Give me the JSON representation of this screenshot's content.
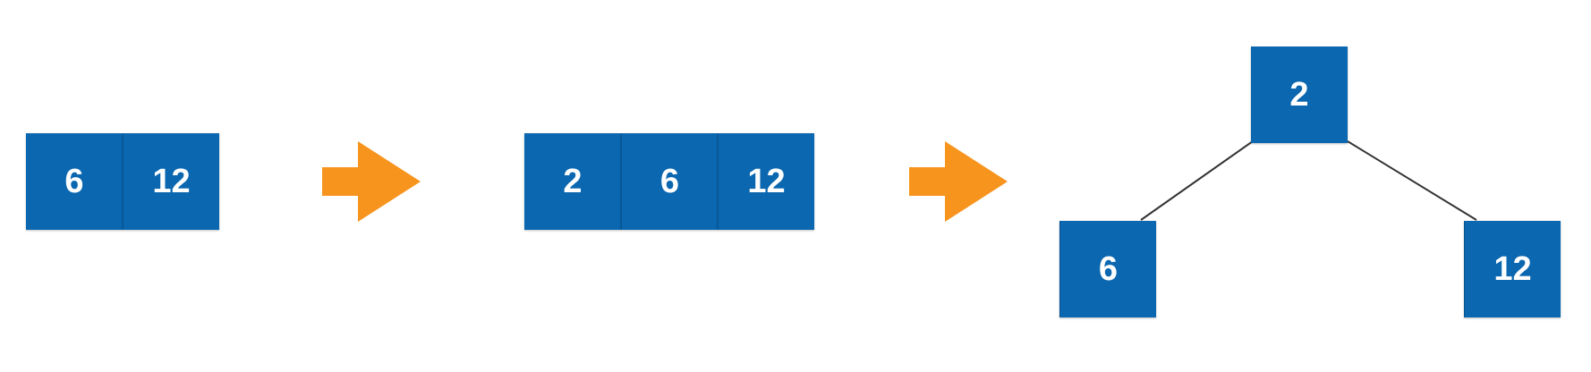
{
  "colors": {
    "node_fill": "#0a67b0",
    "arrow_fill": "#f7941d",
    "edge_stroke": "#333333",
    "background": "#ffffff"
  },
  "stage1": {
    "cells": [
      "6",
      "12"
    ]
  },
  "stage2": {
    "cells": [
      "2",
      "6",
      "12"
    ]
  },
  "stage3": {
    "root": "2",
    "left_child": "6",
    "right_child": "12"
  },
  "arrows": [
    {
      "icon": "right-arrow-icon"
    },
    {
      "icon": "right-arrow-icon"
    }
  ]
}
